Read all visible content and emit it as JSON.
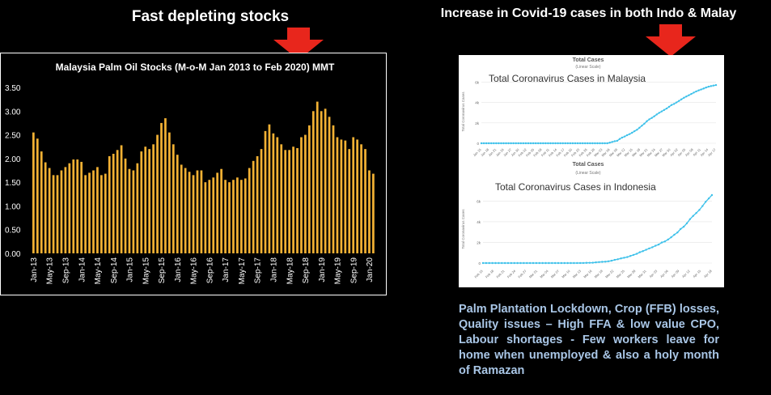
{
  "headings": {
    "left": "Fast depleting stocks",
    "right": "Increase in Covid-19 cases in both Indo & Malay"
  },
  "colors": {
    "arrow": "#e8261c",
    "bars": "#f2b134",
    "line": "#3ec1ea",
    "background": "#000000",
    "note_text": "#a9c6e6"
  },
  "note": "Palm Plantation Lockdown, Crop (FFB) losses, Quality issues – High FFA & low value CPO, Labour shortages - Few workers leave for home when unemployed & also a holy month of Ramazan",
  "chart_data": [
    {
      "type": "bar",
      "title": "Malaysia Palm Oil Stocks (M-o-M Jan 2013 to Feb 2020) MMT",
      "ylim": [
        0,
        3.5
      ],
      "yticks": [
        "0.00",
        "0.50",
        "1.00",
        "1.50",
        "2.00",
        "2.50",
        "3.00",
        "3.50"
      ],
      "xtick_labels": [
        "Jan-13",
        "May-13",
        "Sep-13",
        "Jan-14",
        "May-14",
        "Sep-14",
        "Jan-15",
        "May-15",
        "Sep-15",
        "Jan-16",
        "May-16",
        "Sep-16",
        "Jan-17",
        "May-17",
        "Sep-17",
        "Jan-18",
        "May-18",
        "Sep-18",
        "Jan-19",
        "May-19",
        "Sep-19",
        "Jan-20"
      ],
      "categories_start": "Jan-13",
      "categories_end": "Feb-20",
      "grid": false,
      "values": [
        2.55,
        2.42,
        2.15,
        1.92,
        1.8,
        1.65,
        1.65,
        1.75,
        1.82,
        1.9,
        1.98,
        1.98,
        1.93,
        1.65,
        1.7,
        1.75,
        1.82,
        1.65,
        1.68,
        2.05,
        2.1,
        2.18,
        2.28,
        2.0,
        1.78,
        1.75,
        1.9,
        2.15,
        2.25,
        2.2,
        2.3,
        2.5,
        2.75,
        2.85,
        2.55,
        2.3,
        2.08,
        1.87,
        1.8,
        1.72,
        1.65,
        1.75,
        1.75,
        1.5,
        1.55,
        1.6,
        1.7,
        1.78,
        1.55,
        1.5,
        1.55,
        1.6,
        1.55,
        1.58,
        1.8,
        1.95,
        2.05,
        2.2,
        2.58,
        2.72,
        2.53,
        2.45,
        2.3,
        2.18,
        2.18,
        2.25,
        2.22,
        2.45,
        2.5,
        2.7,
        3.0,
        3.2,
        3.0,
        3.05,
        2.88,
        2.7,
        2.45,
        2.4,
        2.38,
        2.2,
        2.45,
        2.4,
        2.3,
        2.2,
        1.75,
        1.68
      ]
    },
    {
      "type": "line",
      "title": "Total Cases",
      "subtitle": "(Linear Scale)",
      "annotation": "Total Coronavirus Cases in Malaysia",
      "ylabel": "Total Coronavirus Cases",
      "yticks": [
        "0",
        "2k",
        "4k",
        "6k"
      ],
      "ylim": [
        0,
        6500
      ],
      "xtick_labels": [
        "Jan 15",
        "Jan 18",
        "Jan 21",
        "Jan 24",
        "Jan 27",
        "Jan 30",
        "Feb 02",
        "Feb 05",
        "Feb 08",
        "Feb 11",
        "Feb 14",
        "Feb 17",
        "Feb 20",
        "Feb 23",
        "Feb 26",
        "Feb 29",
        "Mar 03",
        "Mar 06",
        "Mar 09",
        "Mar 12",
        "Mar 15",
        "Mar 18",
        "Mar 21",
        "Mar 24",
        "Mar 27",
        "Mar 30",
        "Apr 02",
        "Apr 05",
        "Apr 08",
        "Apr 11",
        "Apr 14",
        "Apr 17"
      ],
      "values": [
        0,
        0,
        0,
        0,
        0,
        0,
        0,
        0,
        0,
        0,
        0,
        0,
        0,
        0,
        0,
        0,
        0,
        0,
        0,
        0,
        0,
        0,
        0,
        0,
        0,
        0,
        0,
        0,
        0,
        0,
        0,
        0,
        0,
        0,
        0,
        0,
        0,
        0,
        0,
        0,
        0,
        0,
        0,
        0,
        0,
        0,
        0,
        0,
        0,
        0,
        0,
        0,
        60,
        130,
        200,
        240,
        420,
        560,
        660,
        790,
        900,
        1030,
        1180,
        1320,
        1520,
        1720,
        1920,
        2160,
        2340,
        2480,
        2640,
        2820,
        2980,
        3120,
        3260,
        3400,
        3570,
        3750,
        3850,
        4000,
        4150,
        4300,
        4450,
        4580,
        4700,
        4830,
        4960,
        5080,
        5180,
        5270,
        5360,
        5460,
        5540,
        5600,
        5650,
        5700
      ]
    },
    {
      "type": "line",
      "title": "Total Cases",
      "subtitle": "(Linear Scale)",
      "annotation": "Total Coronavirus Cases in Indonesia",
      "ylabel": "Total Coronavirus Cases",
      "yticks": [
        "0",
        "2k",
        "4k",
        "6k"
      ],
      "ylim": [
        0,
        7200
      ],
      "xtick_labels": [
        "Feb 15",
        "Feb 18",
        "Feb 21",
        "Feb 24",
        "Feb 27",
        "Mar 01",
        "Mar 04",
        "Mar 07",
        "Mar 10",
        "Mar 13",
        "Mar 16",
        "Mar 19",
        "Mar 22",
        "Mar 25",
        "Mar 28",
        "Mar 31",
        "Apr 03",
        "Apr 06",
        "Apr 09",
        "Apr 12",
        "Apr 15",
        "Apr 18"
      ],
      "values": [
        0,
        0,
        0,
        0,
        0,
        0,
        0,
        0,
        0,
        0,
        0,
        0,
        0,
        0,
        0,
        0,
        0,
        0,
        0,
        0,
        0,
        0,
        0,
        0,
        0,
        0,
        0,
        0,
        0,
        0,
        2,
        4,
        6,
        19,
        27,
        34,
        69,
        96,
        117,
        134,
        172,
        227,
        309,
        369,
        450,
        514,
        579,
        686,
        790,
        893,
        1046,
        1155,
        1285,
        1414,
        1528,
        1677,
        1790,
        1986,
        2092,
        2273,
        2491,
        2738,
        2956,
        3293,
        3512,
        3842,
        4241,
        4557,
        4839,
        5136,
        5516,
        5923,
        6248,
        6575
      ]
    }
  ]
}
